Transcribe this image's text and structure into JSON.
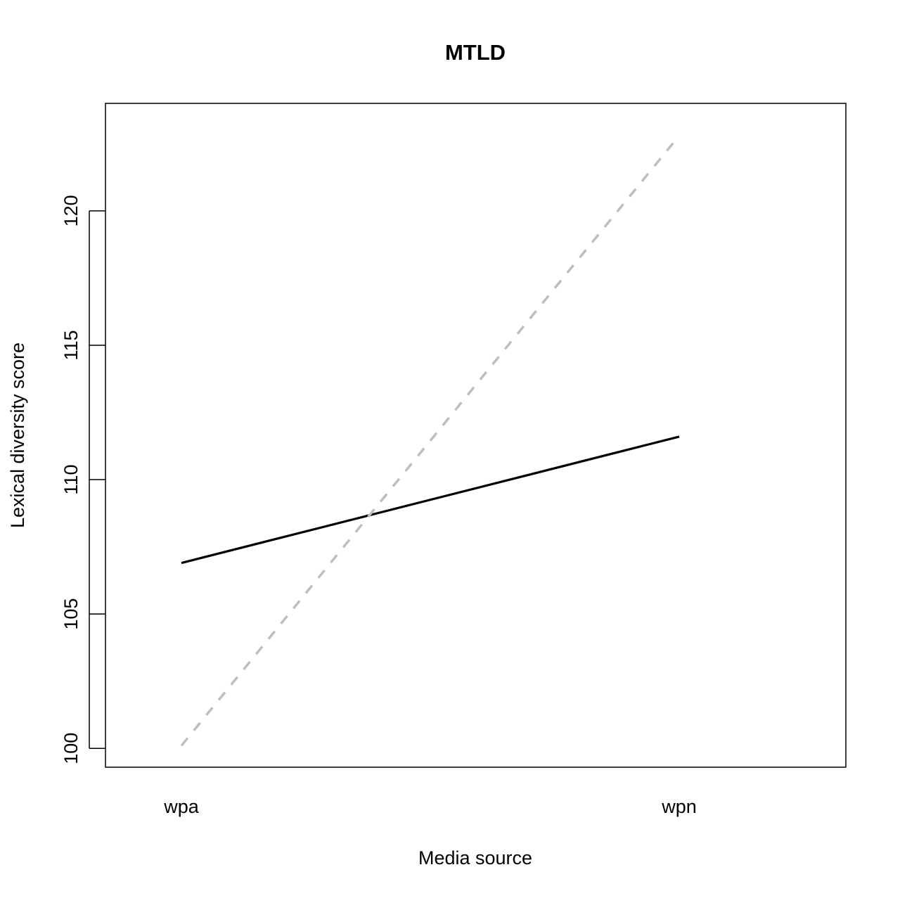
{
  "chart_data": {
    "type": "line",
    "title": "MTLD",
    "xlabel": "Media source",
    "ylabel": "Lexical diversity score",
    "categories": [
      "wpa",
      "wpn"
    ],
    "ylim": [
      99.3,
      124
    ],
    "yticks": [
      100,
      105,
      110,
      115,
      120
    ],
    "ytick_labels": [
      "100",
      "105",
      "110",
      "115",
      "120"
    ],
    "grid": false,
    "legend": "none",
    "series": [
      {
        "values": [
          106.9,
          111.6
        ],
        "color": "#000000",
        "style": "solid"
      },
      {
        "values": [
          100.1,
          122.8
        ],
        "color": "#bebebe",
        "style": "dashed"
      }
    ]
  }
}
